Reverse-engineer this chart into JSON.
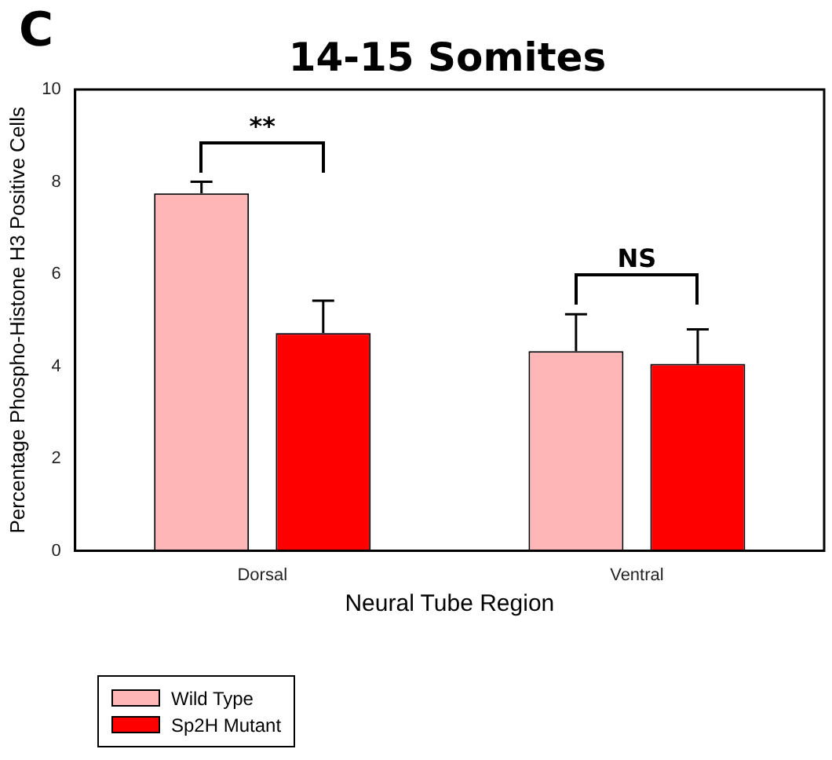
{
  "chart_data": {
    "type": "bar",
    "title": "14-15 Somites",
    "xlabel": "Neural Tube Region",
    "ylabel": "Percentage Phospho-Histone H3 Positive Cells",
    "categories": [
      "Dorsal",
      "Ventral"
    ],
    "series": [
      {
        "name": "Wild Type",
        "color": "#ffb6b6",
        "values": [
          7.75,
          4.33
        ],
        "errors": [
          [
            7.75,
            8.0
          ],
          [
            4.33,
            5.13
          ]
        ]
      },
      {
        "name": "Sp2H Mutant",
        "color": "#ff0000",
        "values": [
          4.72,
          4.05
        ],
        "errors": [
          [
            4.72,
            5.42
          ],
          [
            4.05,
            4.8
          ]
        ]
      }
    ],
    "ylim": [
      0,
      10
    ],
    "yticks": [
      0,
      2,
      4,
      6,
      8,
      10
    ],
    "grid": false,
    "legend": "bottom left",
    "annotations": [
      "C",
      "**",
      "NS"
    ]
  }
}
